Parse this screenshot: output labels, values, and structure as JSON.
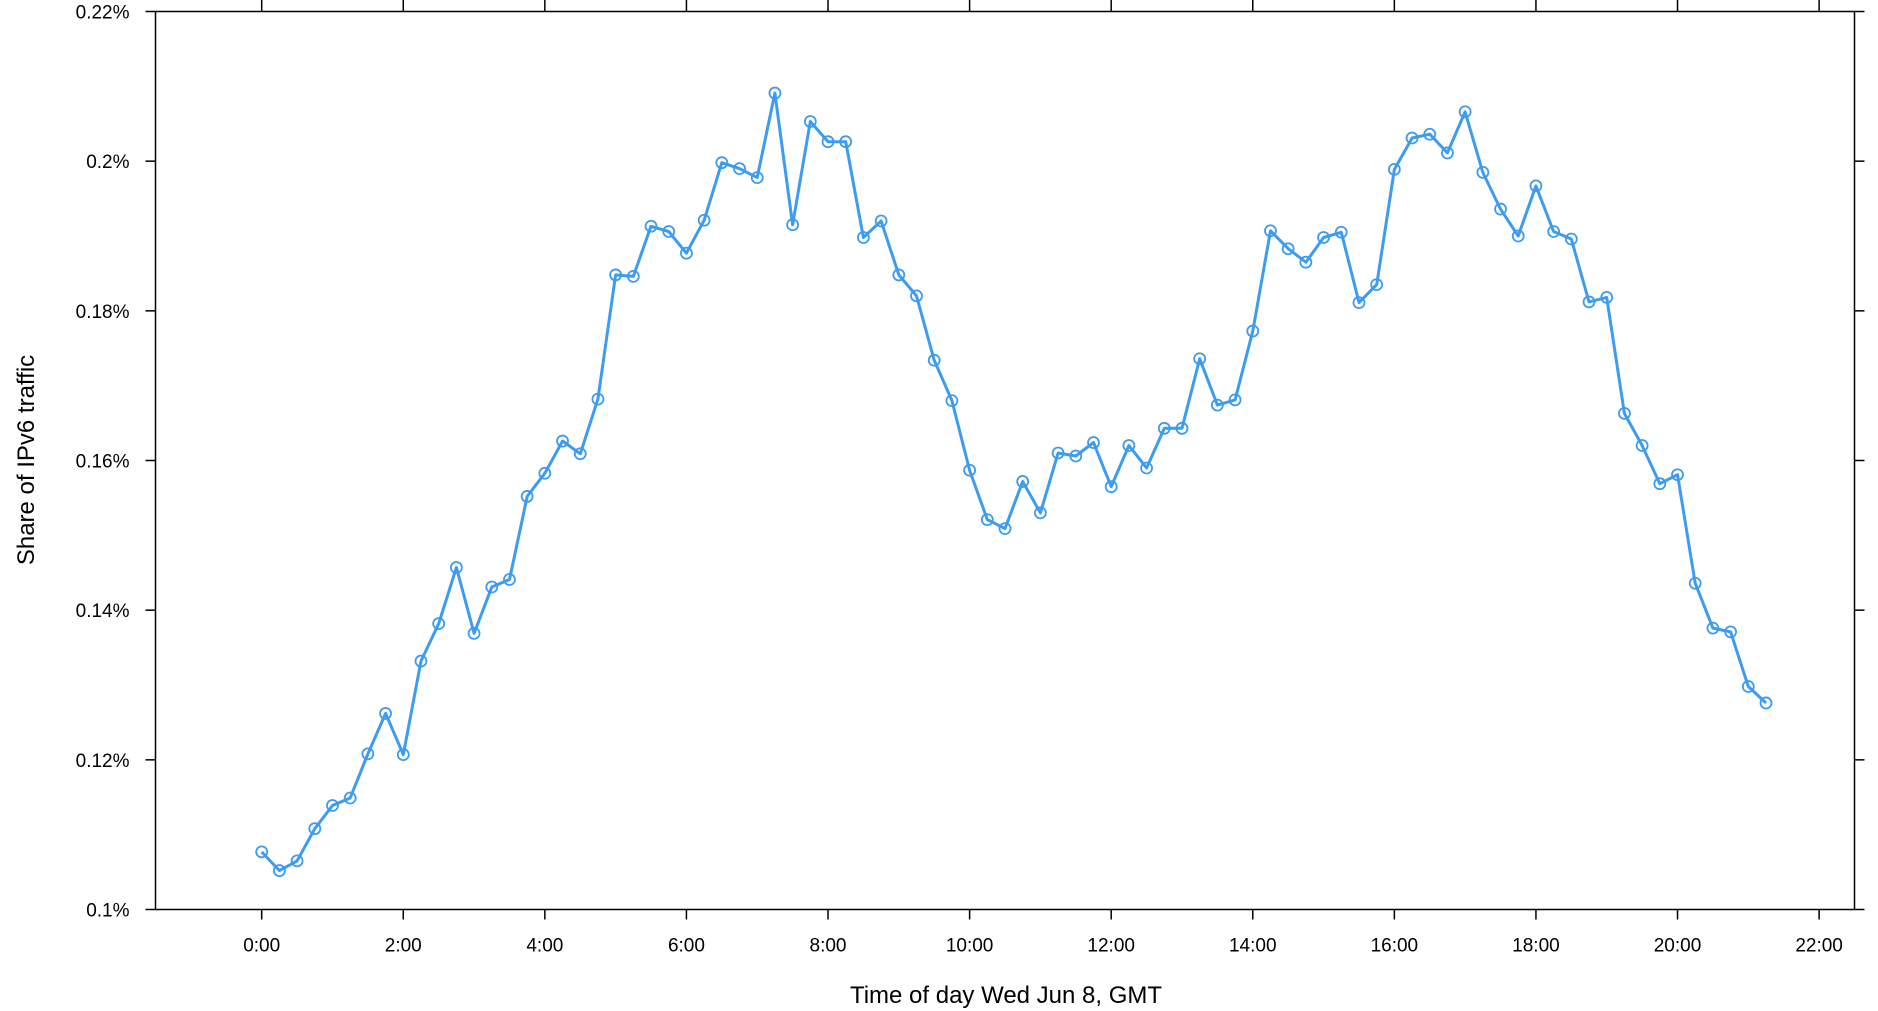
{
  "chart_data": {
    "type": "line",
    "title": "",
    "xlabel": "Time of day Wed Jun 8, GMT",
    "ylabel": "Share of IPv6 traffic",
    "x_unit": "hours",
    "xlim": [
      -1.5,
      22.5
    ],
    "ylim": [
      0.1,
      0.22
    ],
    "x_ticks": [
      {
        "value": 0,
        "label": "0:00"
      },
      {
        "value": 2,
        "label": "2:00"
      },
      {
        "value": 4,
        "label": "4:00"
      },
      {
        "value": 6,
        "label": "6:00"
      },
      {
        "value": 8,
        "label": "8:00"
      },
      {
        "value": 10,
        "label": "10:00"
      },
      {
        "value": 12,
        "label": "12:00"
      },
      {
        "value": 14,
        "label": "14:00"
      },
      {
        "value": 16,
        "label": "16:00"
      },
      {
        "value": 18,
        "label": "18:00"
      },
      {
        "value": 20,
        "label": "20:00"
      },
      {
        "value": 22,
        "label": "22:00"
      }
    ],
    "y_ticks": [
      {
        "value": 0.1,
        "label": "0.1%"
      },
      {
        "value": 0.12,
        "label": "0.12%"
      },
      {
        "value": 0.14,
        "label": "0.14%"
      },
      {
        "value": 0.16,
        "label": "0.16%"
      },
      {
        "value": 0.18,
        "label": "0.18%"
      },
      {
        "value": 0.2,
        "label": "0.2%"
      },
      {
        "value": 0.22,
        "label": "0.22%"
      }
    ],
    "grid": false,
    "marker": "open-circle",
    "series_color": "#3d9bf0",
    "series": [
      {
        "name": "",
        "x": [
          0,
          0.25,
          0.5,
          0.75,
          1,
          1.25,
          1.5,
          1.75,
          2,
          2.25,
          2.5,
          2.75,
          3,
          3.25,
          3.5,
          3.75,
          4,
          4.25,
          4.5,
          4.75,
          5,
          5.25,
          5.5,
          5.75,
          6,
          6.25,
          6.5,
          6.75,
          7,
          7.25,
          7.5,
          7.75,
          8,
          8.25,
          8.5,
          8.75,
          9,
          9.25,
          9.5,
          9.75,
          10,
          10.25,
          10.5,
          10.75,
          11,
          11.25,
          11.5,
          11.75,
          12,
          12.25,
          12.5,
          12.75,
          13,
          13.25,
          13.5,
          13.75,
          14,
          14.25,
          14.5,
          14.75,
          15,
          15.25,
          15.5,
          15.75,
          16,
          16.25,
          16.5,
          16.75,
          17,
          17.25,
          17.5,
          17.75,
          18,
          18.25,
          18.5,
          18.75,
          19,
          19.25,
          19.5,
          19.75,
          20,
          20.25,
          20.5,
          20.75,
          21,
          21.25
        ],
        "y": [
          0.1077,
          0.1052,
          0.1065,
          0.1108,
          0.1139,
          0.1149,
          0.1208,
          0.1262,
          0.1207,
          0.1332,
          0.1382,
          0.1457,
          0.1369,
          0.1431,
          0.1441,
          0.1552,
          0.1583,
          0.1626,
          0.1609,
          0.1682,
          0.1848,
          0.1846,
          0.1913,
          0.1906,
          0.1877,
          0.1921,
          0.1998,
          0.199,
          0.1978,
          0.2091,
          0.1915,
          0.2053,
          0.2026,
          0.2026,
          0.1898,
          0.192,
          0.1848,
          0.182,
          0.1734,
          0.168,
          0.1587,
          0.1521,
          0.1509,
          0.1572,
          0.153,
          0.161,
          0.1606,
          0.1624,
          0.1565,
          0.162,
          0.159,
          0.1643,
          0.1643,
          0.1736,
          0.1674,
          0.1681,
          0.1773,
          0.1907,
          0.1883,
          0.1865,
          0.1898,
          0.1905,
          0.1811,
          0.1835,
          0.1989,
          0.2031,
          0.2036,
          0.2011,
          0.2066,
          0.1985,
          0.1936,
          0.19,
          0.1967,
          0.1906,
          0.1896,
          0.1812,
          0.1818,
          0.1663,
          0.162,
          0.1569,
          0.1581,
          0.1436,
          0.1376,
          0.1371,
          0.1298,
          0.1276
        ]
      }
    ]
  }
}
